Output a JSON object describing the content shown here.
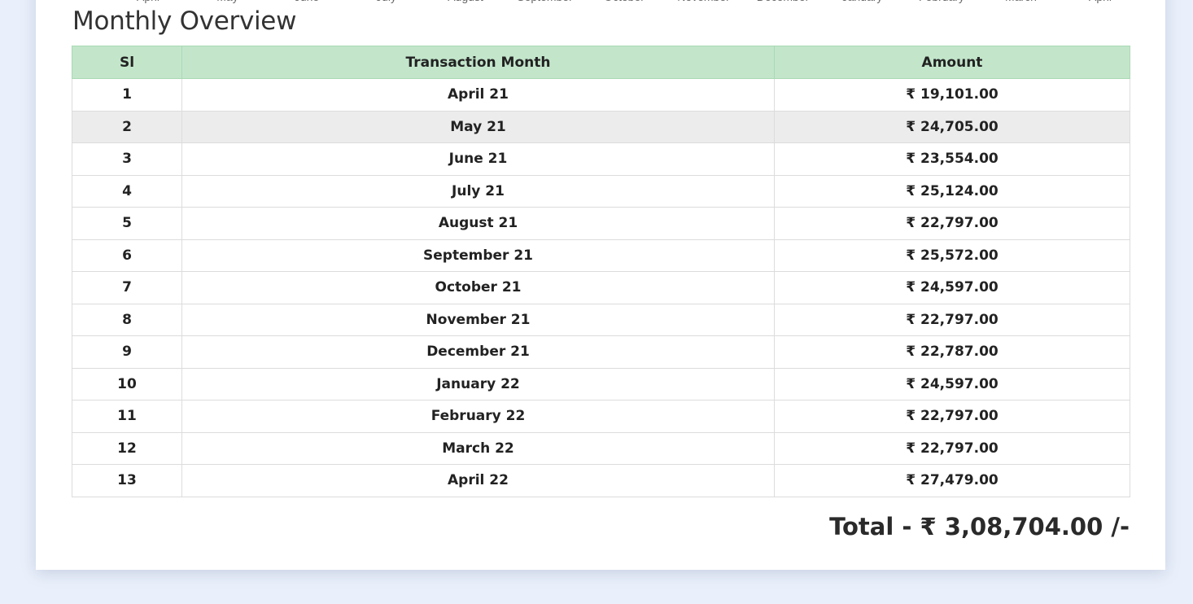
{
  "chart_axis": {
    "labels": [
      "April",
      "May",
      "June",
      "July",
      "August",
      "September",
      "October",
      "November",
      "December",
      "January",
      "February",
      "March",
      "April"
    ]
  },
  "overview": {
    "title": "Monthly Overview",
    "columns": [
      "Sl",
      "Transaction Month",
      "Amount"
    ],
    "rows": [
      {
        "sl": "1",
        "month": "April 21",
        "amount": "₹ 19,101.00"
      },
      {
        "sl": "2",
        "month": "May 21",
        "amount": "₹ 24,705.00"
      },
      {
        "sl": "3",
        "month": "June 21",
        "amount": "₹ 23,554.00"
      },
      {
        "sl": "4",
        "month": "July 21",
        "amount": "₹ 25,124.00"
      },
      {
        "sl": "5",
        "month": "August 21",
        "amount": "₹ 22,797.00"
      },
      {
        "sl": "6",
        "month": "September 21",
        "amount": "₹ 25,572.00"
      },
      {
        "sl": "7",
        "month": "October 21",
        "amount": "₹ 24,597.00"
      },
      {
        "sl": "8",
        "month": "November 21",
        "amount": "₹ 22,797.00"
      },
      {
        "sl": "9",
        "month": "December 21",
        "amount": "₹ 22,787.00"
      },
      {
        "sl": "10",
        "month": "January 22",
        "amount": "₹ 24,597.00"
      },
      {
        "sl": "11",
        "month": "February 22",
        "amount": "₹ 22,797.00"
      },
      {
        "sl": "12",
        "month": "March 22",
        "amount": "₹ 22,797.00"
      },
      {
        "sl": "13",
        "month": "April 22",
        "amount": "₹ 27,479.00"
      }
    ],
    "total_label": "Total - ₹ 3,08,704.00 /-"
  },
  "colors": {
    "page_background": "#eaf0fb",
    "header_background": "#c3e6cb",
    "striped_row": "#ececec"
  }
}
